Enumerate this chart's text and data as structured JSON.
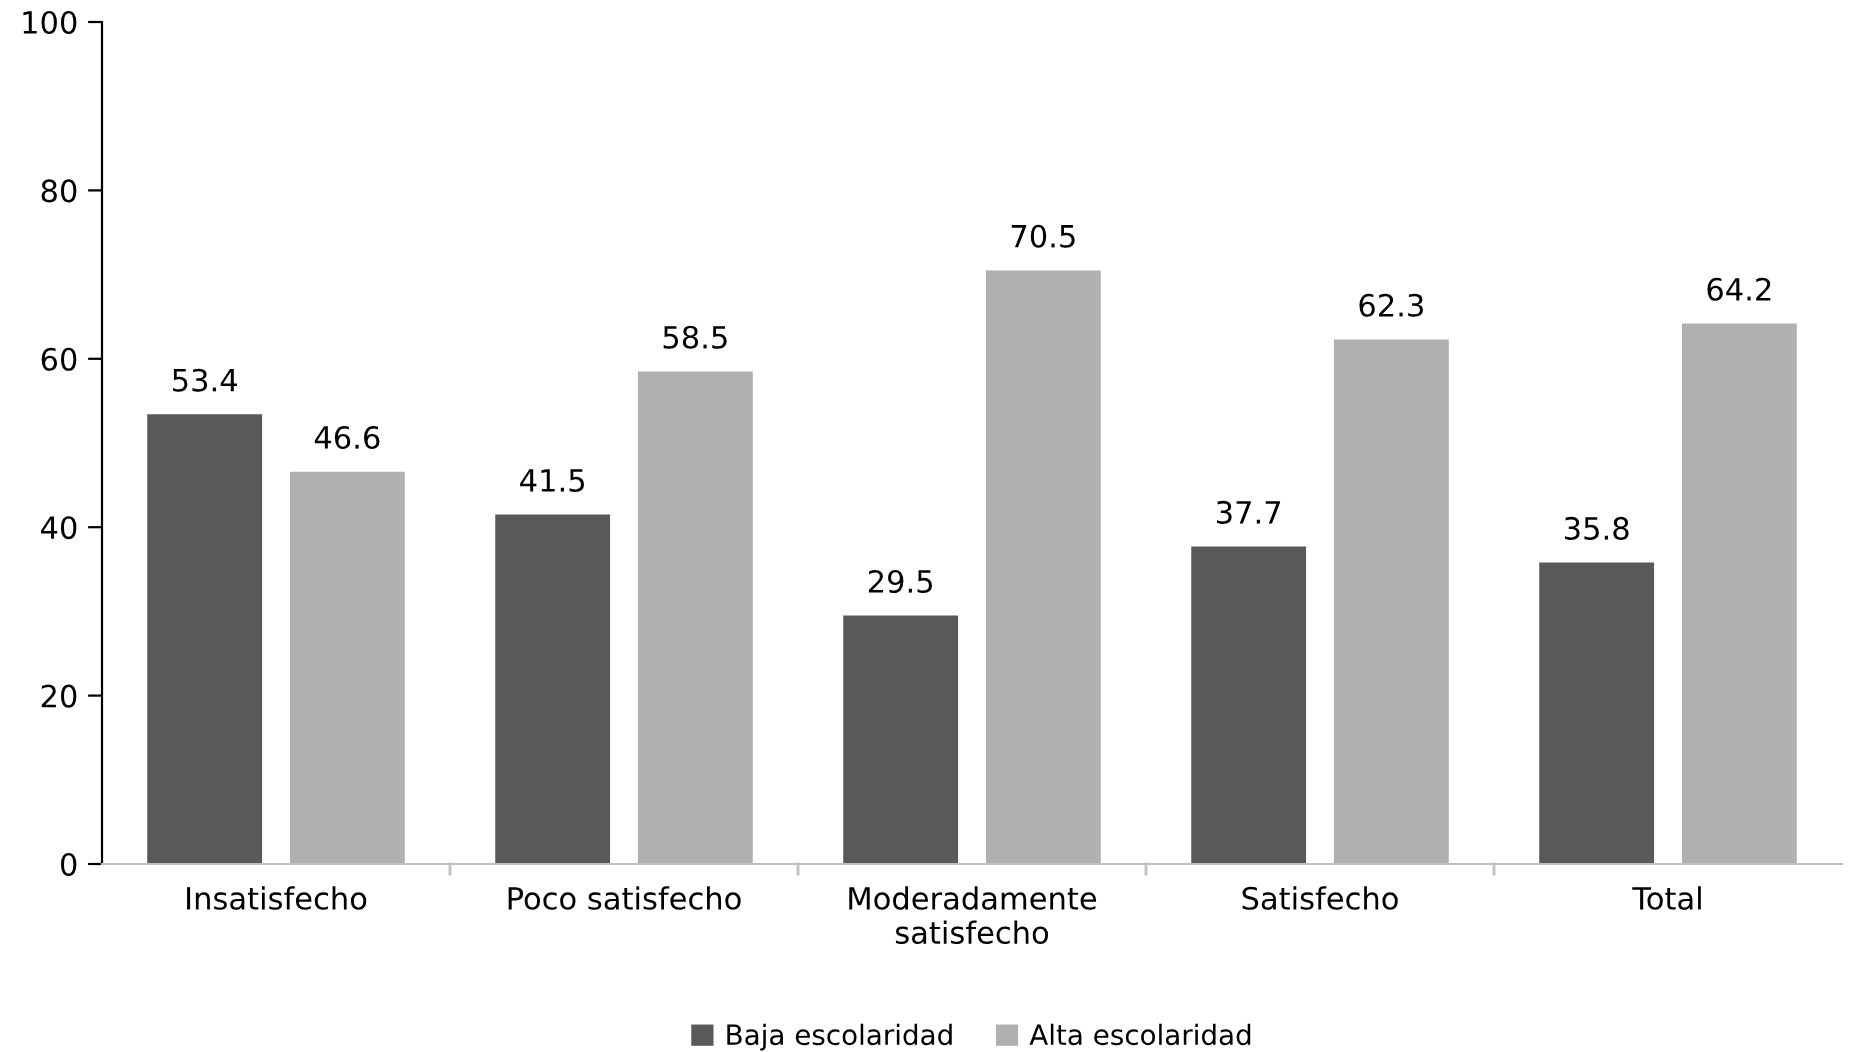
{
  "chart_data": {
    "type": "bar",
    "categories": [
      "Insatisfecho",
      "Poco satisfecho",
      "Moderadamente\nsatisfecho",
      "Satisfecho",
      "Total"
    ],
    "series": [
      {
        "name": "Baja escolaridad",
        "color": "#595959",
        "values": [
          53.4,
          41.5,
          29.5,
          37.7,
          35.8
        ]
      },
      {
        "name": "Alta escolaridad",
        "color": "#b0b0b0",
        "values": [
          46.6,
          58.5,
          70.5,
          62.3,
          64.2
        ]
      }
    ],
    "ylim": [
      0,
      100
    ],
    "yticks": [
      0,
      20,
      40,
      60,
      80,
      100
    ],
    "data_labels": true,
    "grid": false,
    "legend": "bottom"
  }
}
